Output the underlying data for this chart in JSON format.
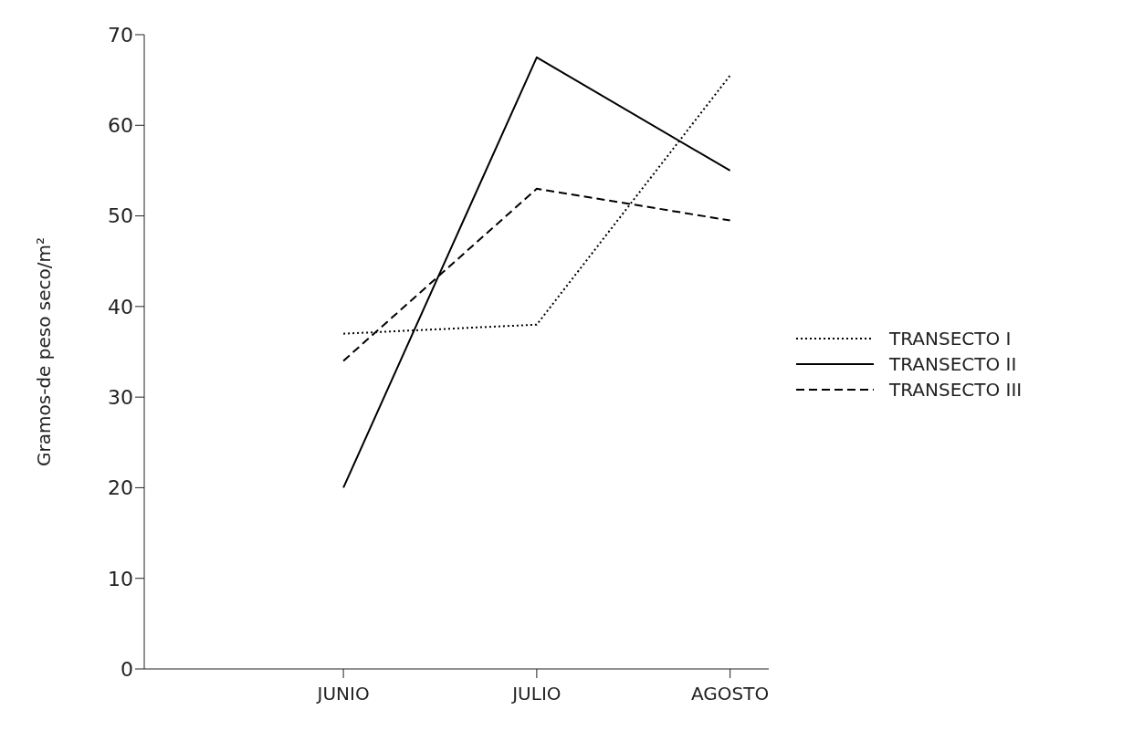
{
  "chart_data": {
    "type": "line",
    "ylabel": "Gramos-de peso seco/m²",
    "categories": [
      "JUNIO",
      "JULIO",
      "AGOSTO"
    ],
    "series": [
      {
        "name": "TRANSECTO I",
        "color": "#000000",
        "line_style": "dotted",
        "values": [
          37,
          38,
          65.5
        ]
      },
      {
        "name": "TRANSECTO II",
        "color": "#000000",
        "line_style": "solid",
        "values": [
          20,
          67.5,
          55
        ]
      },
      {
        "name": "TRANSECTO III",
        "color": "#000000",
        "line_style": "dashed",
        "values": [
          34,
          53,
          49.5
        ]
      }
    ],
    "ylim": [
      0,
      70
    ],
    "yticks": [
      0,
      10,
      20,
      30,
      40,
      50,
      60,
      70
    ],
    "grid": false,
    "legend": "right",
    "marker": "none"
  }
}
